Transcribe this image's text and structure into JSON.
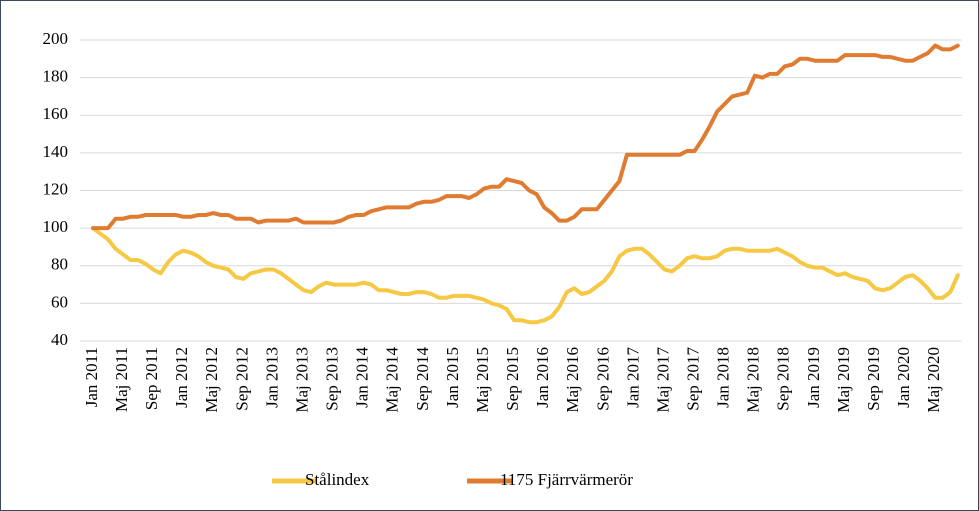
{
  "chart_data": {
    "type": "line",
    "categories": [
      "Jan 2011",
      null,
      null,
      null,
      "Maj 2011",
      null,
      null,
      null,
      "Sep 2011",
      null,
      null,
      null,
      "Jan 2012",
      null,
      null,
      null,
      "Maj 2012",
      null,
      null,
      null,
      "Sep 2012",
      null,
      null,
      null,
      "Jan 2013",
      null,
      null,
      null,
      "Maj 2013",
      null,
      null,
      null,
      "Sep 2013",
      null,
      null,
      null,
      "Jan 2014",
      null,
      null,
      null,
      "Maj 2014",
      null,
      null,
      null,
      "Sep 2014",
      null,
      null,
      null,
      "Jan 2015",
      null,
      null,
      null,
      "Maj 2015",
      null,
      null,
      null,
      "Sep 2015",
      null,
      null,
      null,
      "Jan 2016",
      null,
      null,
      null,
      "Maj 2016",
      null,
      null,
      null,
      "Sep 2016",
      null,
      null,
      null,
      "Jan 2017",
      null,
      null,
      null,
      "Maj 2017",
      null,
      null,
      null,
      "Sep 2017",
      null,
      null,
      null,
      "Jan 2018",
      null,
      null,
      null,
      "Maj 2018",
      null,
      null,
      null,
      "Sep 2018",
      null,
      null,
      null,
      "Jan 2019",
      null,
      null,
      null,
      "Maj 2019",
      null,
      null,
      null,
      "Sep 2019",
      null,
      null,
      null,
      "Jan 2020",
      null,
      null,
      null,
      "Maj 2020",
      null,
      null,
      null
    ],
    "series": [
      {
        "name": "Stålindex",
        "color": "#f6c843",
        "values": [
          100,
          97,
          94,
          89,
          86,
          83,
          83,
          81,
          78,
          76,
          82,
          86,
          88,
          87,
          85,
          82,
          80,
          79,
          78,
          74,
          73,
          76,
          77,
          78,
          78,
          76,
          73,
          70,
          67,
          66,
          69,
          71,
          70,
          70,
          70,
          70,
          71,
          70,
          67,
          67,
          66,
          65,
          65,
          66,
          66,
          65,
          63,
          63,
          64,
          64,
          64,
          63,
          62,
          60,
          59,
          57,
          51,
          51,
          50,
          50,
          51,
          53,
          58,
          66,
          68,
          65,
          66,
          69,
          72,
          77,
          85,
          88,
          89,
          89,
          86,
          82,
          78,
          77,
          80,
          84,
          85,
          84,
          84,
          85,
          88,
          89,
          89,
          88,
          88,
          88,
          88,
          89,
          87,
          85,
          82,
          80,
          79,
          79,
          77,
          75,
          76,
          74,
          73,
          72,
          68,
          67,
          68,
          71,
          74,
          75,
          72,
          68,
          63,
          63,
          66,
          75
        ]
      },
      {
        "name": "1175 Fjärrvärmerör",
        "color": "#e07b32",
        "values": [
          100,
          100,
          100,
          105,
          105,
          106,
          106,
          107,
          107,
          107,
          107,
          107,
          106,
          106,
          107,
          107,
          108,
          107,
          107,
          105,
          105,
          105,
          103,
          104,
          104,
          104,
          104,
          105,
          103,
          103,
          103,
          103,
          103,
          104,
          106,
          107,
          107,
          109,
          110,
          111,
          111,
          111,
          111,
          113,
          114,
          114,
          115,
          117,
          117,
          117,
          116,
          118,
          121,
          122,
          122,
          126,
          125,
          124,
          120,
          118,
          111,
          108,
          104,
          104,
          106,
          110,
          110,
          110,
          115,
          120,
          125,
          139,
          139,
          139,
          139,
          139,
          139,
          139,
          139,
          141,
          141,
          147,
          154,
          162,
          166,
          170,
          171,
          172,
          181,
          180,
          182,
          182,
          186,
          187,
          190,
          190,
          189,
          189,
          189,
          189,
          192,
          192,
          192,
          192,
          192,
          191,
          191,
          190,
          189,
          189,
          191,
          193,
          197,
          195,
          195,
          197
        ]
      }
    ],
    "ylim": [
      40,
      200
    ],
    "yticks": [
      40,
      60,
      80,
      100,
      120,
      140,
      160,
      180,
      200
    ],
    "grid": true,
    "legend": "bottom"
  }
}
